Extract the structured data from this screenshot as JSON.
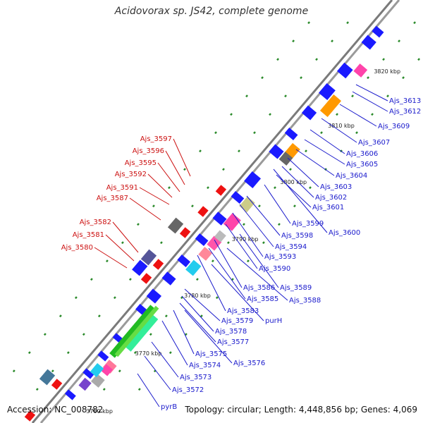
{
  "title": "Acidovorax sp. JS42, complete genome",
  "accession": "Accession: NC_008782",
  "summary": "Topology: circular; Length: 4,448,856 bp; Genes: 4,069",
  "colors": {
    "forward_gene": "#1a1aff",
    "reverse_gene": "#ee1111",
    "backbone": "#888888",
    "label_right": "#1a1acc",
    "label_left": "#cc1111",
    "tick_dots": "#2a8a2a"
  },
  "kbp_ticks": [
    "3760 kbp",
    "3770 kbp",
    "3780 kbp",
    "3790 kbp",
    "3800 kbp",
    "3810 kbp",
    "3820 kbp"
  ],
  "right_labels": [
    "Ajs_3613",
    "Ajs_3612",
    "Ajs_3609",
    "Ajs_3607",
    "Ajs_3606",
    "Ajs_3605",
    "Ajs_3604",
    "Ajs_3603",
    "Ajs_3602",
    "Ajs_3601",
    "Ajs_3599",
    "Ajs_3600",
    "Ajs_3598",
    "Ajs_3594",
    "Ajs_3593",
    "Ajs_3590",
    "Ajs_3589",
    "Ajs_3586",
    "Ajs_3588",
    "Ajs_3585",
    "Ajs_3583",
    "purH",
    "Ajs_3579",
    "Ajs_3578",
    "Ajs_3577",
    "Ajs_3575",
    "Ajs_3576",
    "Ajs_3574",
    "Ajs_3573",
    "Ajs_3572",
    "pyrB"
  ],
  "left_labels": [
    "Ajs_3597",
    "Ajs_3596",
    "Ajs_3595",
    "Ajs_3592",
    "Ajs_3591",
    "Ajs_3587",
    "Ajs_3582",
    "Ajs_3581",
    "Ajs_3580"
  ]
}
